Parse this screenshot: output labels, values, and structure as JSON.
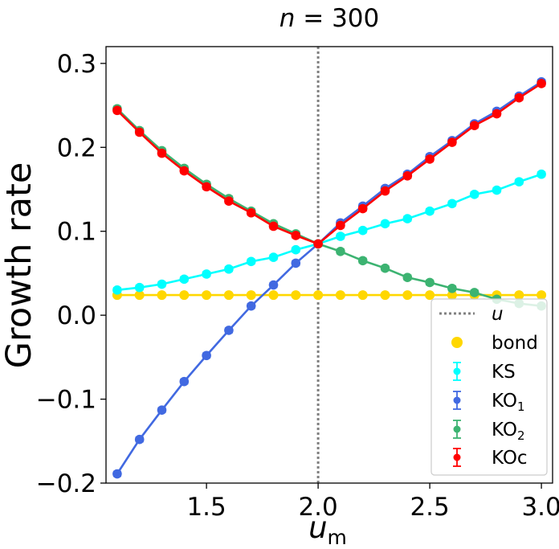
{
  "chart_data": {
    "type": "line",
    "title": "n = 300",
    "title_var": "n",
    "title_value": "300",
    "xlabel": "u",
    "xlabel_sub": "m",
    "ylabel": "Growth rate",
    "xlim": [
      1.05,
      3.05
    ],
    "ylim": [
      -0.2,
      0.32
    ],
    "xticks": [
      1.5,
      2.0,
      2.5,
      3.0
    ],
    "xtick_labels": [
      "1.5",
      "2.0",
      "2.5",
      "3.0"
    ],
    "yticks": [
      -0.2,
      -0.1,
      0.0,
      0.1,
      0.2,
      0.3
    ],
    "ytick_labels": [
      "−0.2",
      "−0.1",
      "0.0",
      "0.1",
      "0.2",
      "0.3"
    ],
    "grid": false,
    "vline": {
      "x": 2.0,
      "label": "u",
      "color": "#808080"
    },
    "x": [
      1.1,
      1.2,
      1.3,
      1.4,
      1.5,
      1.6,
      1.7,
      1.8,
      1.9,
      2.0,
      2.1,
      2.2,
      2.3,
      2.4,
      2.5,
      2.6,
      2.7,
      2.8,
      2.9,
      3.0
    ],
    "series": [
      {
        "name": "bond",
        "color": "#ffd700",
        "style": "scatter-line",
        "values": [
          0.024,
          0.024,
          0.024,
          0.024,
          0.024,
          0.024,
          0.024,
          0.024,
          0.024,
          0.024,
          0.024,
          0.024,
          0.024,
          0.024,
          0.024,
          0.024,
          0.024,
          0.024,
          0.024,
          0.024
        ]
      },
      {
        "name": "KS",
        "color": "#00ffff",
        "style": "errorbar",
        "values": [
          0.03,
          0.033,
          0.037,
          0.043,
          0.049,
          0.055,
          0.064,
          0.069,
          0.078,
          0.085,
          0.094,
          0.101,
          0.109,
          0.115,
          0.124,
          0.133,
          0.144,
          0.149,
          0.159,
          0.168
        ]
      },
      {
        "name": "KO",
        "name_sub": "1",
        "color": "#4169e1",
        "style": "errorbar",
        "values": [
          -0.189,
          -0.148,
          -0.113,
          -0.079,
          -0.048,
          -0.018,
          0.011,
          0.036,
          0.062,
          0.085,
          0.11,
          0.13,
          0.151,
          0.168,
          0.189,
          0.208,
          0.228,
          0.243,
          0.261,
          0.278
        ]
      },
      {
        "name": "KO",
        "name_sub": "2",
        "color": "#3cb371",
        "style": "errorbar",
        "values": [
          0.246,
          0.22,
          0.196,
          0.175,
          0.156,
          0.139,
          0.124,
          0.109,
          0.097,
          0.085,
          0.076,
          0.065,
          0.056,
          0.045,
          0.039,
          0.032,
          0.027,
          0.019,
          0.014,
          0.011
        ]
      },
      {
        "name": "KOc",
        "color": "#ff0000",
        "style": "errorbar",
        "values": [
          0.244,
          0.218,
          0.193,
          0.172,
          0.153,
          0.136,
          0.122,
          0.106,
          0.095,
          0.085,
          0.107,
          0.127,
          0.148,
          0.166,
          0.186,
          0.206,
          0.226,
          0.24,
          0.259,
          0.276
        ]
      }
    ],
    "legend_position": "lower-right"
  }
}
